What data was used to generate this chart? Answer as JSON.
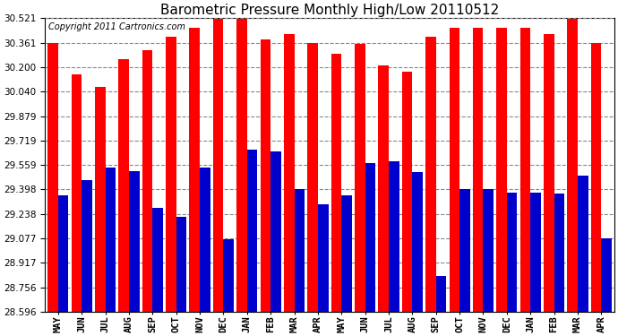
{
  "title": "Barometric Pressure Monthly High/Low 20110512",
  "copyright": "Copyright 2011 Cartronics.com",
  "months": [
    "MAY",
    "JUN",
    "JUL",
    "AUG",
    "SEP",
    "OCT",
    "NOV",
    "DEC",
    "JAN",
    "FEB",
    "MAR",
    "APR",
    "MAY",
    "JUN",
    "JUL",
    "AUG",
    "SEP",
    "OCT",
    "NOV",
    "DEC",
    "JAN",
    "FEB",
    "MAR",
    "APR"
  ],
  "highs": [
    30.36,
    30.15,
    30.07,
    30.25,
    30.31,
    30.4,
    30.46,
    30.52,
    30.52,
    30.38,
    30.42,
    30.36,
    30.29,
    30.35,
    30.21,
    30.17,
    30.4,
    30.46,
    30.46,
    30.46,
    30.46,
    30.42,
    30.52,
    30.36
  ],
  "lows": [
    29.36,
    29.46,
    29.54,
    29.52,
    29.28,
    29.22,
    29.54,
    29.07,
    29.66,
    29.65,
    29.4,
    29.3,
    29.36,
    29.57,
    29.58,
    29.51,
    28.83,
    29.4,
    29.4,
    29.38,
    29.38,
    29.37,
    29.49,
    29.08
  ],
  "yticks": [
    28.596,
    28.756,
    28.917,
    29.077,
    29.238,
    29.398,
    29.559,
    29.719,
    29.879,
    30.04,
    30.2,
    30.361,
    30.521
  ],
  "ymin": 28.596,
  "ymax": 30.521,
  "bar_width": 0.44,
  "high_color": "#ff0000",
  "low_color": "#0000cc",
  "bg_color": "#ffffff",
  "grid_color": "#888888",
  "title_fontsize": 11,
  "copyright_fontsize": 7,
  "tick_fontsize": 7.5
}
